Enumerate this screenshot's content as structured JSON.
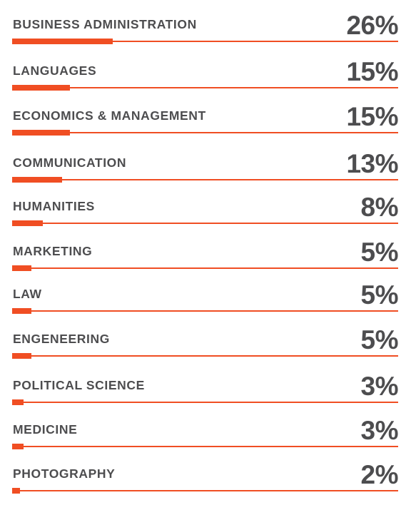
{
  "accent_color": "#f04e23",
  "text_color": "#4d4d4f",
  "chart_data": {
    "type": "bar",
    "categories": [
      "BUSINESS ADMINISTRATION",
      "LANGUAGES",
      "ECONOMICS & MANAGEMENT",
      "COMMUNICATION",
      "HUMANITIES",
      "MARKETING",
      "LAW",
      "ENGENEERING",
      "POLITICAL SCIENCE",
      "MEDICINE",
      "PHOTOGRAPHY"
    ],
    "values": [
      26,
      15,
      15,
      13,
      8,
      5,
      5,
      5,
      3,
      3,
      2
    ],
    "value_labels": [
      "26%",
      "15%",
      "15%",
      "13%",
      "8%",
      "5%",
      "5%",
      "5%",
      "3%",
      "3%",
      "2%"
    ],
    "xlim": [
      0,
      100
    ]
  }
}
